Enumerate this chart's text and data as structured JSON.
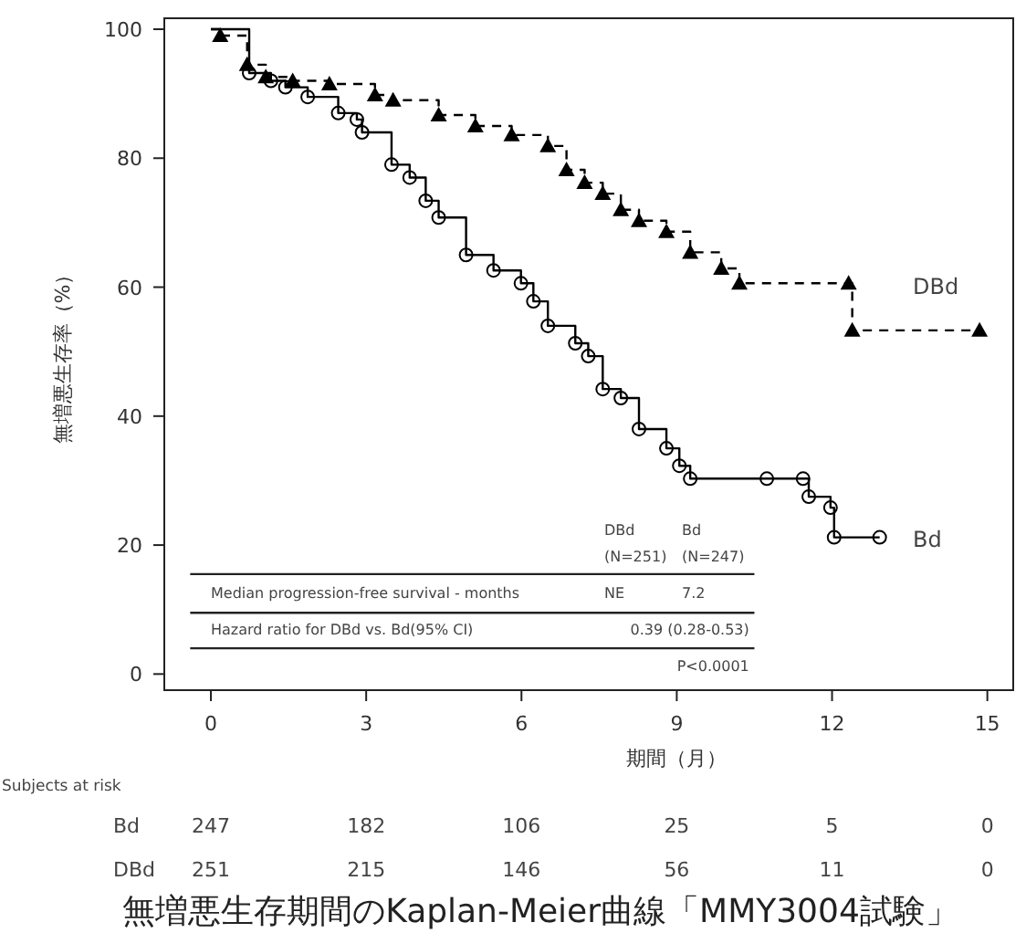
{
  "chart_data": {
    "type": "step",
    "title": "無増悪生存期間のKaplan-Meier曲線「MMY3004試験」",
    "xlabel": "期間（月）",
    "ylabel": "無増悪生存率（%）",
    "xlim": [
      -0.9,
      15.5
    ],
    "ylim": [
      -2.5,
      101.7
    ],
    "xticks": [
      0,
      3,
      6,
      9,
      12,
      15
    ],
    "yticks": [
      0,
      20,
      40,
      60,
      80,
      100
    ],
    "grid": false,
    "series": [
      {
        "name": "DBd",
        "color": "#000000",
        "marker": "triangle",
        "line_style": "dashed",
        "x": [
          0,
          0.18,
          0.7,
          1.06,
          1.58,
          2.29,
          3.17,
          3.52,
          4.4,
          5.11,
          5.81,
          6.51,
          6.87,
          7.22,
          7.57,
          7.92,
          8.27,
          8.8,
          9.26,
          9.86,
          10.21,
          12.32,
          12.39,
          14.85
        ],
        "values": [
          100,
          99,
          94.5,
          92.6,
          92,
          91.5,
          89.8,
          89,
          86.7,
          85,
          83.6,
          81.9,
          78.2,
          76.2,
          74.5,
          72,
          70.3,
          68.6,
          65.4,
          62.9,
          60.6,
          60.6,
          53.3,
          53.3
        ]
      },
      {
        "name": "Bd",
        "color": "#000000",
        "marker": "circle",
        "line_style": "solid",
        "x": [
          0,
          0.74,
          1.16,
          1.44,
          1.87,
          2.46,
          2.82,
          2.92,
          3.49,
          3.84,
          4.15,
          4.4,
          4.93,
          5.46,
          5.99,
          6.23,
          6.51,
          7.04,
          7.29,
          7.57,
          7.92,
          8.27,
          8.8,
          9.05,
          9.26,
          10.74,
          11.44,
          11.55,
          11.97,
          12.04,
          12.92
        ],
        "values": [
          100,
          93.2,
          92,
          91,
          89.5,
          87,
          86,
          84,
          79,
          77,
          73.4,
          70.8,
          65,
          62.6,
          60.6,
          57.8,
          54,
          51.3,
          49.3,
          44.2,
          42.8,
          38,
          35,
          32.3,
          30.3,
          30.3,
          30.3,
          27.5,
          25.8,
          21.2,
          21.2
        ]
      }
    ],
    "annotations": [
      "DBd",
      "(N=251)",
      "Bd",
      "(N=247)",
      "Median progression-free survival - months",
      "NE",
      "7.2",
      "Hazard ratio for DBd vs. Bd(95% CI)",
      "0.39 (0.28-0.53)",
      "P<0.0001",
      "Subjects at risk",
      "Bd",
      "247",
      "182",
      "106",
      "25",
      "5",
      "0",
      "DBd",
      "251",
      "215",
      "146",
      "56",
      "11",
      "0"
    ]
  }
}
